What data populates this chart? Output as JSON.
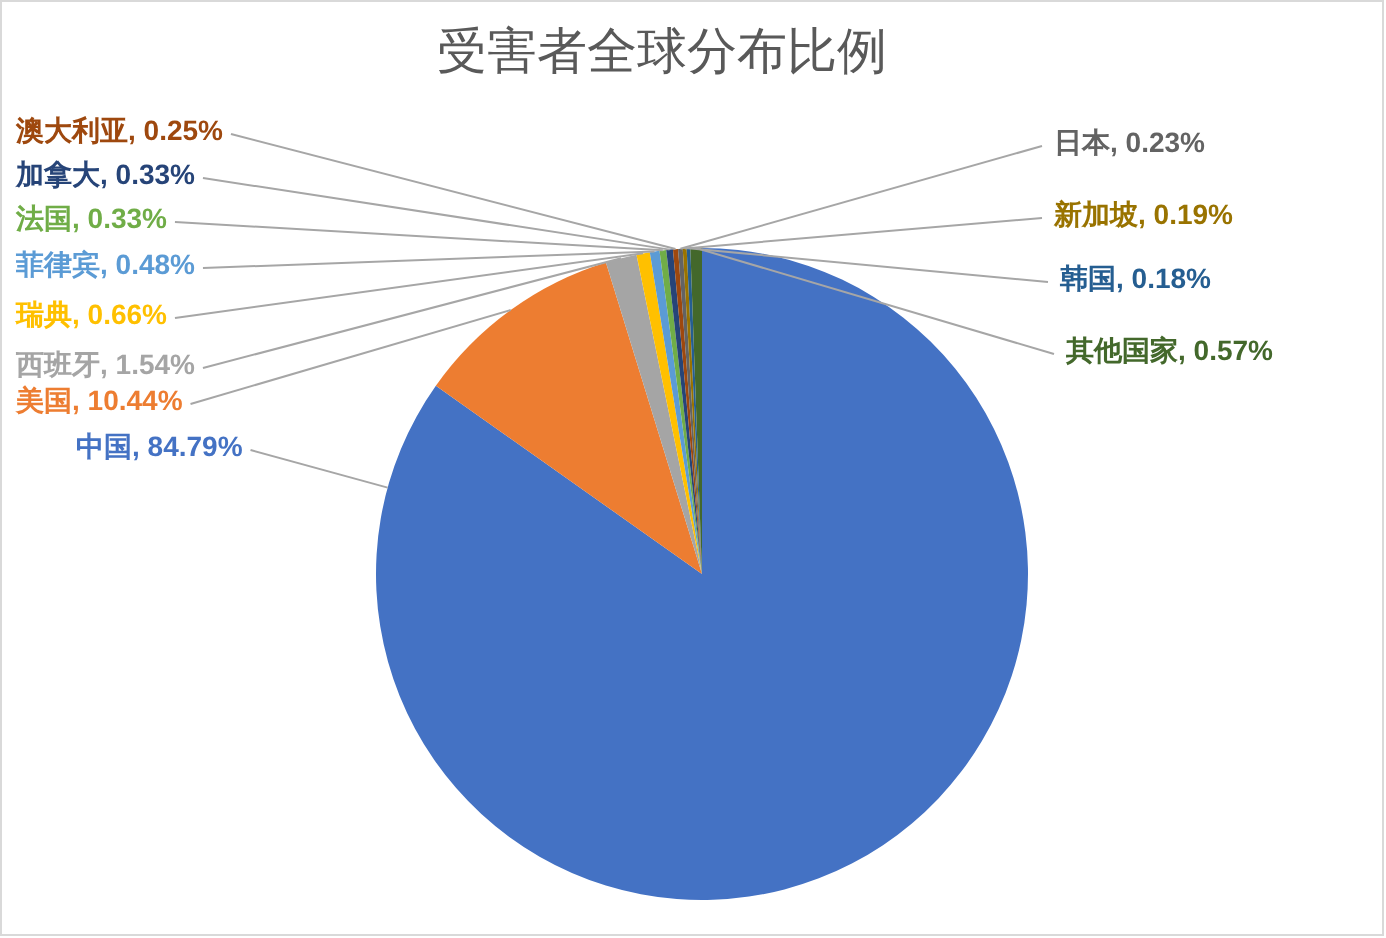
{
  "chart_data": {
    "type": "pie",
    "title": "受害者全球分布比例",
    "categories": [
      "中国",
      "美国",
      "西班牙",
      "瑞典",
      "菲律宾",
      "法国",
      "加拿大",
      "澳大利亚",
      "日本",
      "新加坡",
      "韩国",
      "其他国家"
    ],
    "values": [
      84.79,
      10.44,
      1.54,
      0.66,
      0.48,
      0.33,
      0.33,
      0.25,
      0.23,
      0.19,
      0.18,
      0.57
    ],
    "value_labels": [
      "84.79%",
      "10.44%",
      "1.54%",
      "0.66%",
      "0.48%",
      "0.33%",
      "0.33%",
      "0.25%",
      "0.23%",
      "0.19%",
      "0.18%",
      "0.57%"
    ],
    "colors": [
      "#4472c4",
      "#ed7d31",
      "#a5a5a5",
      "#ffc000",
      "#5b9bd5",
      "#70ad47",
      "#264478",
      "#9e480e",
      "#636363",
      "#997300",
      "#255e91",
      "#43682b"
    ]
  }
}
